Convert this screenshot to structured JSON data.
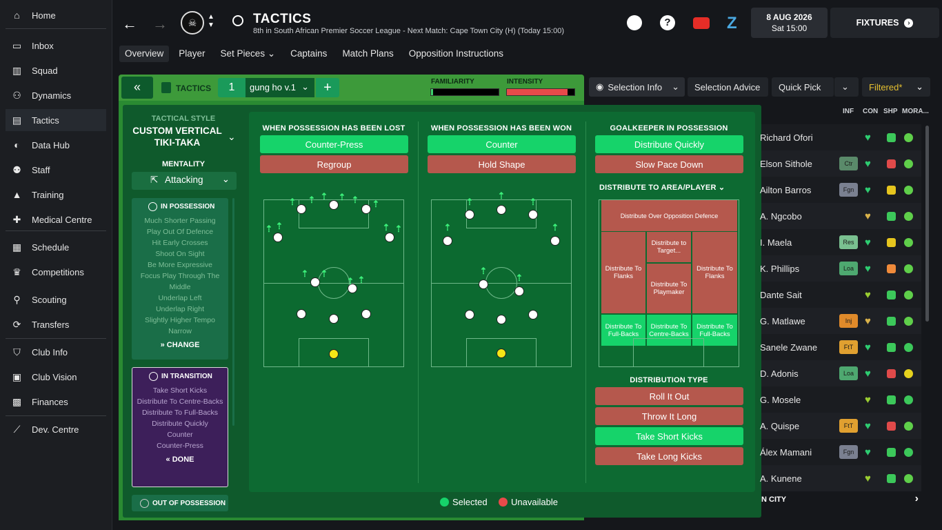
{
  "sidebar": {
    "items": [
      {
        "label": "Home",
        "icon": "home-icon"
      },
      {
        "label": "Inbox",
        "icon": "inbox-icon"
      },
      {
        "label": "Squad",
        "icon": "shirt-icon"
      },
      {
        "label": "Dynamics",
        "icon": "dynamics-icon"
      },
      {
        "label": "Tactics",
        "icon": "tactics-board-icon"
      },
      {
        "label": "Data Hub",
        "icon": "data-hub-icon"
      },
      {
        "label": "Staff",
        "icon": "staff-icon"
      },
      {
        "label": "Training",
        "icon": "training-cone-icon"
      },
      {
        "label": "Medical Centre",
        "icon": "medical-kit-icon"
      },
      {
        "label": "Schedule",
        "icon": "calendar-icon"
      },
      {
        "label": "Competitions",
        "icon": "trophy-icon"
      },
      {
        "label": "Scouting",
        "icon": "magnifier-icon"
      },
      {
        "label": "Transfers",
        "icon": "transfer-arrows-icon"
      },
      {
        "label": "Club Info",
        "icon": "shield-icon"
      },
      {
        "label": "Club Vision",
        "icon": "briefcase-icon"
      },
      {
        "label": "Finances",
        "icon": "banknote-icon"
      },
      {
        "label": "Dev. Centre",
        "icon": "growth-chart-icon"
      }
    ],
    "active": "Tactics"
  },
  "header": {
    "title": "TACTICS",
    "subtitle": "8th in South African Premier Soccer League - Next Match: Cape Town City (H) (Today 15:00)",
    "date": "8 AUG 2026",
    "time": "Sat 15:00",
    "fixtures": "FIXTURES"
  },
  "tabs": [
    "Overview",
    "Player",
    "Set Pieces",
    "Captains",
    "Match Plans",
    "Opposition Instructions"
  ],
  "tacticbar": {
    "label": "TACTICS",
    "slot": "1",
    "name": "gung ho v.1",
    "familiarity": "FAMILIARITY",
    "intensity": "INTENSITY",
    "familiarity_level": 0.03,
    "intensity_level": 0.9
  },
  "left": {
    "style_label": "TACTICAL STYLE",
    "style_name": "CUSTOM VERTICAL TIKI-TAKA",
    "mentality_label": "MENTALITY",
    "mentality": "Attacking",
    "in_possession": {
      "title": "IN POSSESSION",
      "items": [
        "Much Shorter Passing",
        "Play Out Of Defence",
        "Hit Early Crosses",
        "Shoot On Sight",
        "Be More Expressive",
        "Focus Play Through The Middle",
        "Underlap Left",
        "Underlap Right",
        "Slightly Higher Tempo",
        "Narrow"
      ],
      "action": "CHANGE"
    },
    "in_transition": {
      "title": "IN TRANSITION",
      "items": [
        "Take Short Kicks",
        "Distribute To Centre-Backs",
        "Distribute To Full-Backs",
        "Distribute Quickly",
        "Counter",
        "Counter-Press"
      ],
      "action": "DONE"
    },
    "out_of_possession": {
      "title": "OUT OF POSSESSION"
    }
  },
  "columns": {
    "lost": {
      "title": "WHEN POSSESSION HAS BEEN LOST",
      "options": [
        {
          "label": "Counter-Press",
          "selected": true
        },
        {
          "label": "Regroup",
          "selected": false
        }
      ]
    },
    "won": {
      "title": "WHEN POSSESSION HAS BEEN WON",
      "options": [
        {
          "label": "Counter",
          "selected": true
        },
        {
          "label": "Hold Shape",
          "selected": false
        }
      ]
    },
    "gk": {
      "title": "GOALKEEPER IN POSSESSION",
      "options": [
        {
          "label": "Distribute Quickly",
          "selected": true
        },
        {
          "label": "Slow Pace Down",
          "selected": false
        }
      ],
      "area_title": "DISTRIBUTE TO AREA/PLAYER",
      "areas": {
        "over": "Distribute Over Opposition Defence",
        "flanks_l": "Distribute To Flanks",
        "target": "Distribute to Target...",
        "playmaker": "Distribute To Playmaker",
        "flanks_r": "Distribute To Flanks",
        "fb_l": "Distribute To Full-Backs",
        "cb": "Distribute To Centre-Backs",
        "fb_r": "Distribute To Full-Backs"
      },
      "type_title": "DISTRIBUTION TYPE",
      "types": [
        {
          "label": "Roll It Out",
          "selected": false
        },
        {
          "label": "Throw It Long",
          "selected": false
        },
        {
          "label": "Take Short Kicks",
          "selected": true
        },
        {
          "label": "Take Long Kicks",
          "selected": false
        }
      ]
    }
  },
  "legend": {
    "selected": "Selected",
    "unavailable": "Unavailable"
  },
  "right": {
    "buttons": {
      "selection_info": "Selection Info",
      "selection_advice": "Selection Advice",
      "quick_pick": "Quick Pick",
      "filtered": "Filtered*"
    },
    "cols": [
      "INF",
      "CON",
      "SHP",
      "MORA..."
    ],
    "players": [
      {
        "name": "Richard Ofori",
        "badge": "",
        "heart": "#2ecc71",
        "shp": "#3cc85a",
        "mor": "#5fcf4a"
      },
      {
        "name": "Elson Sithole",
        "badge": "Ctr",
        "heart": "#2ecc71",
        "shp": "#e04a4a",
        "mor": "#5fcf4a"
      },
      {
        "name": "Ailton Barros",
        "badge": "Fgn",
        "heart": "#2ecc71",
        "shp": "#e6c51e",
        "mor": "#5fcf4a"
      },
      {
        "name": "A. Ngcobo",
        "badge": "",
        "heart": "#d9b24a",
        "shp": "#3cc85a",
        "mor": "#5fcf4a"
      },
      {
        "name": "I. Maela",
        "badge": "Res",
        "heart": "#2ecc71",
        "shp": "#e6c51e",
        "mor": "#5fcf4a"
      },
      {
        "name": "K. Phillips",
        "badge": "Loa",
        "heart": "#2ecc71",
        "shp": "#f08a3a",
        "mor": "#5fcf4a"
      },
      {
        "name": "Dante Sait",
        "badge": "",
        "heart": "#9acd32",
        "shp": "#3cc85a",
        "mor": "#5fcf4a"
      },
      {
        "name": "G. Matlawe",
        "badge": "Inj",
        "heart": "#d9b24a",
        "shp": "#3cc85a",
        "mor": "#5fcf4a"
      },
      {
        "name": "Sanele Zwane",
        "badge": "FtT",
        "heart": "#2ecc71",
        "shp": "#3cc85a",
        "mor": "#3cc85a"
      },
      {
        "name": "D. Adonis",
        "badge": "Loa",
        "heart": "#2ecc71",
        "shp": "#e04a4a",
        "mor": "#e6d21e"
      },
      {
        "name": "G. Mosele",
        "badge": "",
        "heart": "#9acd32",
        "shp": "#3cc85a",
        "mor": "#3cc85a"
      },
      {
        "name": "A. Quispe",
        "badge": "FtT",
        "heart": "#2ecc71",
        "shp": "#e04a4a",
        "mor": "#5fcf4a"
      },
      {
        "name": "Álex Mamani",
        "badge": "Fgn",
        "heart": "#2ecc71",
        "shp": "#3cc85a",
        "mor": "#3cc85a"
      },
      {
        "name": "A. Kunene",
        "badge": "",
        "heart": "#9acd32",
        "shp": "#3cc85a",
        "mor": "#5fcf4a"
      }
    ],
    "footer": "N CITY"
  }
}
